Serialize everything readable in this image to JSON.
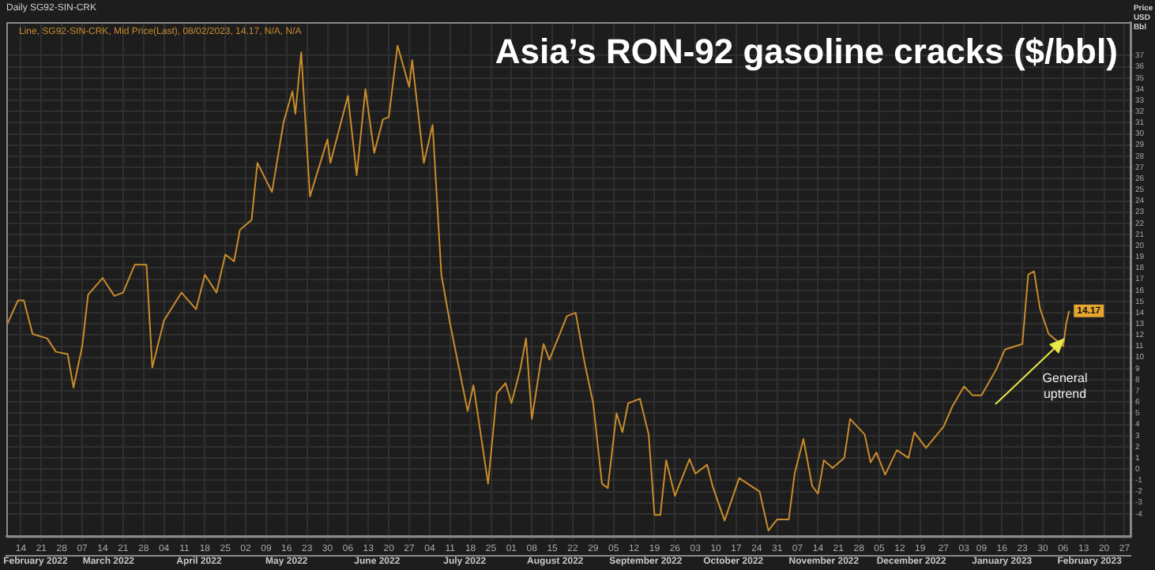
{
  "chart_data": {
    "type": "line",
    "title": "Asia’s RON-92 gasoline cracks ($/bbl)",
    "subtitle": "Daily SG92-SIN-CRK",
    "ylabel": "Price USD Bbl",
    "legend": "top left",
    "grid": true,
    "marker": "none",
    "line_style": "solid",
    "annotations": [
      "General uptrend",
      {
        "text": "14.17",
        "x": "2023-02-08",
        "y": 14.17
      }
    ],
    "series": [
      {
        "name": "Line, SG92-SIN-CRK, Mid Price(Last), 08/02/2023, 14.17, N/A, N/A",
        "color": "#c98b2b",
        "x": [
          "2022-02-09",
          "2022-02-13",
          "2022-02-15",
          "2022-02-18",
          "2022-02-23",
          "2022-02-26",
          "2022-03-02",
          "2022-03-04",
          "2022-03-07",
          "2022-03-09",
          "2022-03-14",
          "2022-03-18",
          "2022-03-21",
          "2022-03-25",
          "2022-03-29",
          "2022-03-31",
          "2022-04-04",
          "2022-04-10",
          "2022-04-15",
          "2022-04-18",
          "2022-04-22",
          "2022-04-25",
          "2022-04-28",
          "2022-04-30",
          "2022-05-04",
          "2022-05-06",
          "2022-05-11",
          "2022-05-15",
          "2022-05-18",
          "2022-05-19",
          "2022-05-21",
          "2022-05-24",
          "2022-05-30",
          "2022-05-31",
          "2022-06-06",
          "2022-06-09",
          "2022-06-12",
          "2022-06-15",
          "2022-06-18",
          "2022-06-20",
          "2022-06-23",
          "2022-06-27",
          "2022-06-28",
          "2022-07-02",
          "2022-07-05",
          "2022-07-08",
          "2022-07-11",
          "2022-07-17",
          "2022-07-19",
          "2022-07-24",
          "2022-07-27",
          "2022-07-30",
          "2022-08-01",
          "2022-08-04",
          "2022-08-06",
          "2022-08-08",
          "2022-08-12",
          "2022-08-14",
          "2022-08-20",
          "2022-08-23",
          "2022-08-26",
          "2022-08-29",
          "2022-09-01",
          "2022-09-03",
          "2022-09-06",
          "2022-09-08",
          "2022-09-10",
          "2022-09-14",
          "2022-09-17",
          "2022-09-19",
          "2022-09-21",
          "2022-09-23",
          "2022-09-26",
          "2022-10-01",
          "2022-10-03",
          "2022-10-07",
          "2022-10-09",
          "2022-10-13",
          "2022-10-18",
          "2022-10-25",
          "2022-10-28",
          "2022-10-31",
          "2022-11-04",
          "2022-11-06",
          "2022-11-09",
          "2022-11-12",
          "2022-11-14",
          "2022-11-16",
          "2022-11-19",
          "2022-11-23",
          "2022-11-25",
          "2022-11-30",
          "2022-12-02",
          "2022-12-04",
          "2022-12-07",
          "2022-12-11",
          "2022-12-15",
          "2022-12-17",
          "2022-12-21",
          "2022-12-27",
          "2022-12-30",
          "2023-01-03",
          "2023-01-06",
          "2023-01-09",
          "2023-01-14",
          "2023-01-17",
          "2023-01-23",
          "2023-01-25",
          "2023-01-27",
          "2023-01-29",
          "2023-02-01",
          "2023-02-06",
          "2023-02-07",
          "2023-02-08"
        ],
        "values": [
          12.8,
          15.1,
          15.1,
          12.1,
          11.7,
          10.5,
          10.3,
          7.3,
          11.0,
          15.6,
          17.1,
          15.5,
          15.8,
          18.3,
          18.3,
          9.1,
          13.3,
          15.8,
          14.3,
          17.4,
          15.8,
          19.2,
          18.6,
          21.4,
          22.3,
          27.4,
          24.8,
          31.1,
          33.8,
          31.8,
          37.3,
          24.4,
          29.5,
          27.4,
          33.4,
          26.3,
          34.0,
          28.3,
          31.3,
          31.5,
          37.9,
          34.2,
          36.6,
          27.4,
          30.8,
          17.4,
          13.0,
          5.2,
          7.5,
          -1.3,
          6.8,
          7.7,
          5.9,
          8.9,
          11.7,
          4.5,
          11.2,
          9.8,
          13.7,
          14.0,
          9.6,
          5.9,
          -1.3,
          -1.7,
          5.0,
          3.3,
          5.9,
          6.3,
          3.1,
          -4.1,
          -4.1,
          0.8,
          -2.4,
          0.9,
          -0.4,
          0.4,
          -1.6,
          -4.6,
          -0.8,
          -2.0,
          -5.5,
          -4.5,
          -4.5,
          -0.4,
          2.7,
          -1.5,
          -2.2,
          0.8,
          0.1,
          1.0,
          4.5,
          3.1,
          0.6,
          1.5,
          -0.5,
          1.7,
          1.0,
          3.3,
          1.9,
          3.8,
          5.6,
          7.4,
          6.6,
          6.6,
          8.9,
          10.7,
          11.2,
          17.4,
          17.7,
          14.4,
          12.1,
          11.0,
          13.0,
          14.17
        ]
      }
    ],
    "xlim": [
      "2022-02-09",
      "2023-03-01"
    ],
    "xticks": [
      {
        "value": "2022-02-14",
        "label": "14"
      },
      {
        "value": "2022-02-21",
        "label": "21"
      },
      {
        "value": "2022-02-28",
        "label": "28"
      },
      {
        "value": "2022-03-07",
        "label": "07"
      },
      {
        "value": "2022-03-14",
        "label": "14"
      },
      {
        "value": "2022-03-21",
        "label": "21"
      },
      {
        "value": "2022-03-28",
        "label": "28"
      },
      {
        "value": "2022-04-04",
        "label": "04"
      },
      {
        "value": "2022-04-11",
        "label": "11"
      },
      {
        "value": "2022-04-18",
        "label": "18"
      },
      {
        "value": "2022-04-25",
        "label": "25"
      },
      {
        "value": "2022-05-02",
        "label": "02"
      },
      {
        "value": "2022-05-09",
        "label": "09"
      },
      {
        "value": "2022-05-16",
        "label": "16"
      },
      {
        "value": "2022-05-23",
        "label": "23"
      },
      {
        "value": "2022-05-30",
        "label": "30"
      },
      {
        "value": "2022-06-06",
        "label": "06"
      },
      {
        "value": "2022-06-13",
        "label": "13"
      },
      {
        "value": "2022-06-20",
        "label": "20"
      },
      {
        "value": "2022-06-27",
        "label": "27"
      },
      {
        "value": "2022-07-04",
        "label": "04"
      },
      {
        "value": "2022-07-11",
        "label": "11"
      },
      {
        "value": "2022-07-18",
        "label": "18"
      },
      {
        "value": "2022-07-25",
        "label": "25"
      },
      {
        "value": "2022-08-01",
        "label": "01"
      },
      {
        "value": "2022-08-08",
        "label": "08"
      },
      {
        "value": "2022-08-15",
        "label": "15"
      },
      {
        "value": "2022-08-22",
        "label": "22"
      },
      {
        "value": "2022-08-29",
        "label": "29"
      },
      {
        "value": "2022-09-05",
        "label": "05"
      },
      {
        "value": "2022-09-12",
        "label": "12"
      },
      {
        "value": "2022-09-19",
        "label": "19"
      },
      {
        "value": "2022-09-26",
        "label": "26"
      },
      {
        "value": "2022-10-03",
        "label": "03"
      },
      {
        "value": "2022-10-10",
        "label": "10"
      },
      {
        "value": "2022-10-17",
        "label": "17"
      },
      {
        "value": "2022-10-24",
        "label": "24"
      },
      {
        "value": "2022-10-31",
        "label": "31"
      },
      {
        "value": "2022-11-07",
        "label": "07"
      },
      {
        "value": "2022-11-14",
        "label": "14"
      },
      {
        "value": "2022-11-21",
        "label": "21"
      },
      {
        "value": "2022-11-28",
        "label": "28"
      },
      {
        "value": "2022-12-05",
        "label": "05"
      },
      {
        "value": "2022-12-12",
        "label": "12"
      },
      {
        "value": "2022-12-19",
        "label": "19"
      },
      {
        "value": "2022-12-27",
        "label": "27"
      },
      {
        "value": "2023-01-03",
        "label": "03"
      },
      {
        "value": "2023-01-09",
        "label": "09"
      },
      {
        "value": "2023-01-16",
        "label": "16"
      },
      {
        "value": "2023-01-23",
        "label": "23"
      },
      {
        "value": "2023-01-30",
        "label": "30"
      },
      {
        "value": "2023-02-06",
        "label": "06"
      },
      {
        "value": "2023-02-13",
        "label": "13"
      },
      {
        "value": "2023-02-20",
        "label": "20"
      },
      {
        "value": "2023-02-27",
        "label": "27"
      }
    ],
    "x2lim": [
      "2022-02-09",
      "2023-03-01"
    ],
    "x2ticks": [
      {
        "value": "2022-02-19",
        "label": "February 2022"
      },
      {
        "value": "2022-03-16",
        "label": "March 2022"
      },
      {
        "value": "2022-04-16",
        "label": "April 2022"
      },
      {
        "value": "2022-05-16",
        "label": "May 2022"
      },
      {
        "value": "2022-06-16",
        "label": "June 2022"
      },
      {
        "value": "2022-07-16",
        "label": "July 2022"
      },
      {
        "value": "2022-08-16",
        "label": "August 2022"
      },
      {
        "value": "2022-09-16",
        "label": "September 2022"
      },
      {
        "value": "2022-10-16",
        "label": "October 2022"
      },
      {
        "value": "2022-11-16",
        "label": "November 2022"
      },
      {
        "value": "2022-12-16",
        "label": "December 2022"
      },
      {
        "value": "2023-01-16",
        "label": "January 2023"
      },
      {
        "value": "2023-02-15",
        "label": "February 2023"
      }
    ],
    "ylim": [
      -6,
      40
    ],
    "yticks": [
      -4,
      -3,
      -2,
      -1,
      0,
      1,
      2,
      3,
      4,
      5,
      6,
      7,
      8,
      9,
      10,
      11,
      12,
      13,
      14,
      15,
      16,
      17,
      18,
      19,
      20,
      21,
      22,
      23,
      24,
      25,
      26,
      27,
      28,
      29,
      30,
      31,
      32,
      33,
      34,
      35,
      36,
      37
    ]
  }
}
